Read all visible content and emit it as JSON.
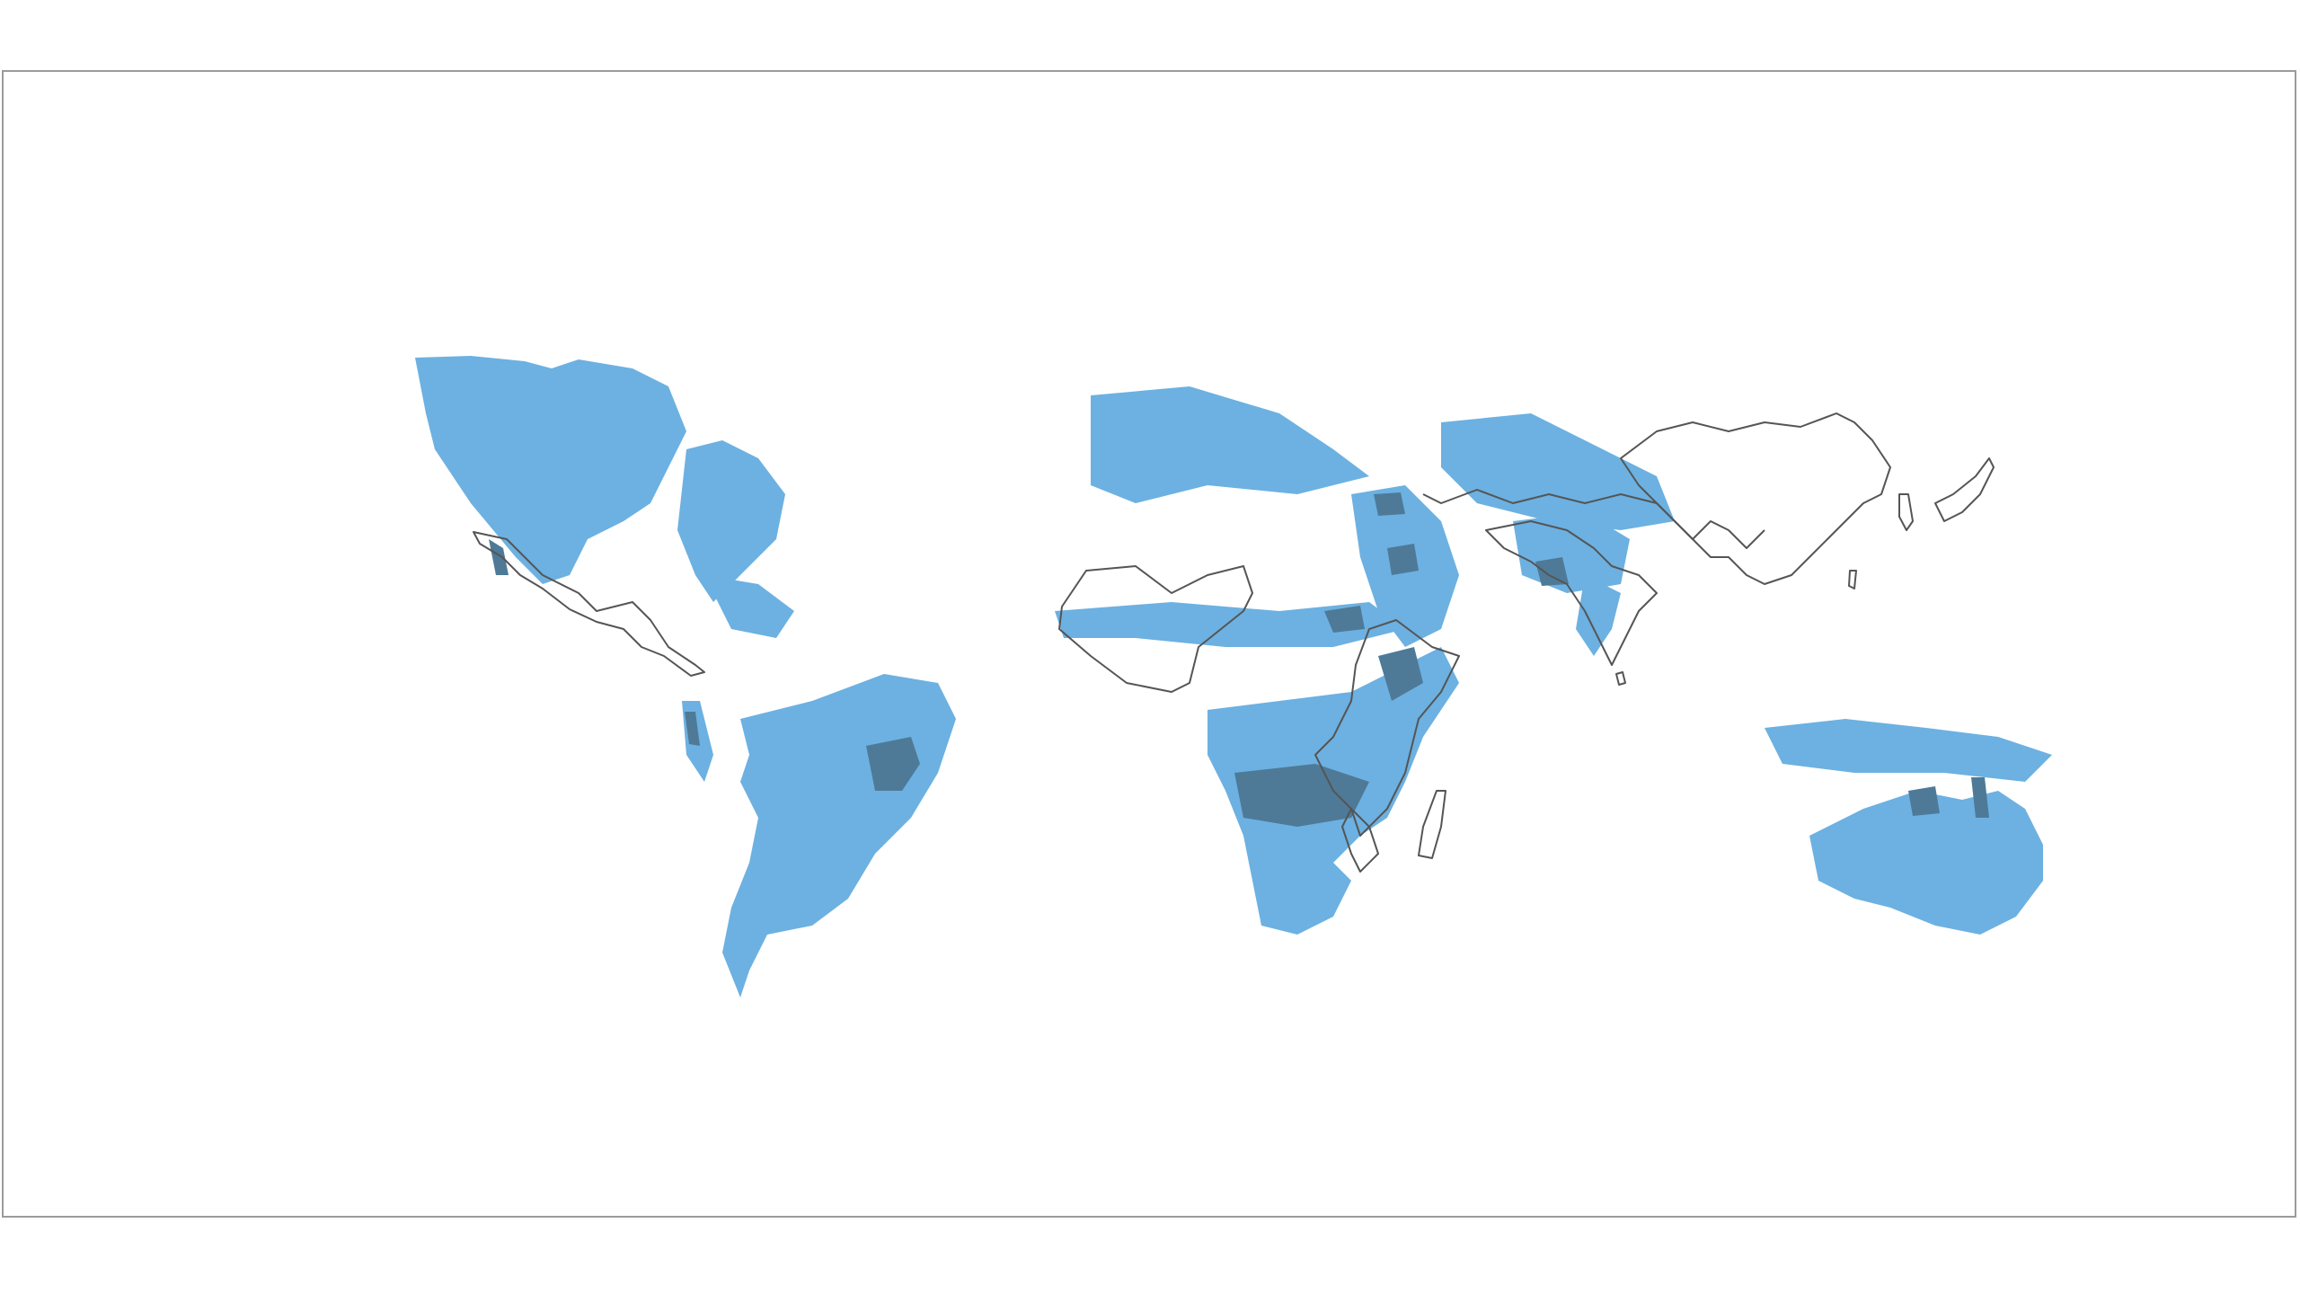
{
  "map": {
    "fill_color": "#6cb1e1",
    "dense_fill_color": "#4e7a98",
    "outline_color": "#555555",
    "frame_border_color": "#9b9b9b",
    "background_color": "#ffffff",
    "regions": [
      {
        "name": "north-america",
        "level": "range"
      },
      {
        "name": "south-america",
        "level": "range"
      },
      {
        "name": "north-africa",
        "level": "range"
      },
      {
        "name": "sub-saharan-africa",
        "level": "range"
      },
      {
        "name": "middle-east",
        "level": "range"
      },
      {
        "name": "central-asia",
        "level": "range"
      },
      {
        "name": "south-asia",
        "level": "range"
      },
      {
        "name": "australia",
        "level": "range"
      },
      {
        "name": "southeast-asia",
        "level": "range"
      }
    ],
    "outlined_areas": [
      "mexico",
      "central-america",
      "west-africa-sahel",
      "horn-of-africa",
      "east-africa",
      "mozambique",
      "madagascar",
      "india",
      "sri-lanka",
      "china",
      "korea",
      "japan",
      "central-asia-border"
    ]
  }
}
